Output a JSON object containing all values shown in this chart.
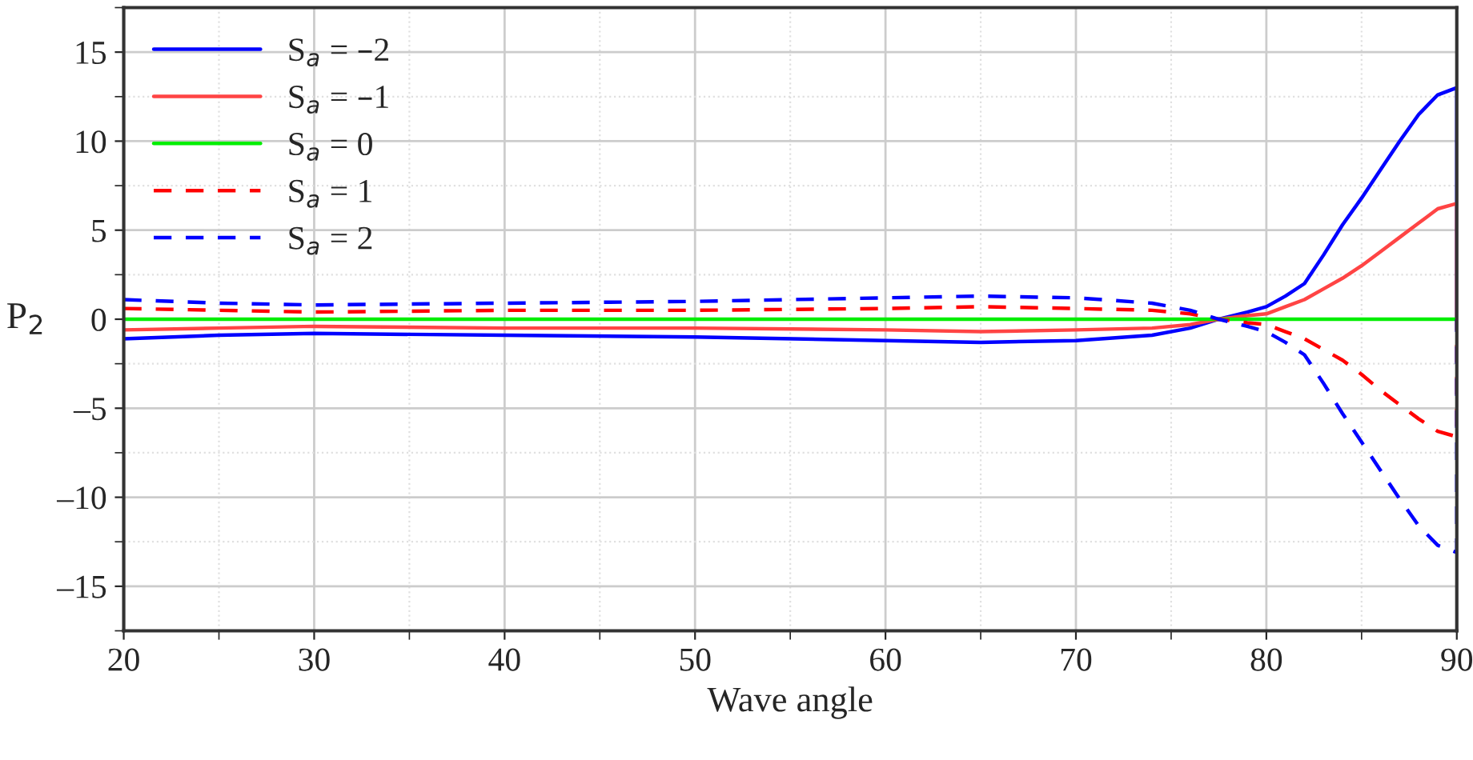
{
  "chart_data": {
    "type": "line",
    "xlabel": "Wave angle",
    "ylabel": "P$_{2}$",
    "xlim": [
      20,
      90
    ],
    "ylim": [
      -17.5,
      17.5
    ],
    "xticks": [
      20,
      30,
      40,
      50,
      60,
      70,
      80,
      90
    ],
    "yticks": [
      {
        "value": -15,
        "label": "–15"
      },
      {
        "value": -10,
        "label": "–10"
      },
      {
        "value": -5,
        "label": "–5"
      },
      0,
      5,
      10,
      15
    ],
    "grid": true,
    "legend": "top left",
    "x": [
      20,
      25,
      30,
      40,
      50,
      60,
      65,
      70,
      74,
      76,
      77.5,
      79,
      80,
      81,
      82,
      83,
      84,
      85,
      86,
      87,
      88,
      89,
      90,
      90
    ],
    "series": [
      {
        "name": "S$_{a}$ = –2",
        "color": "#0000ff",
        "line_style": "solid",
        "values": [
          -1.1,
          -0.9,
          -0.8,
          -0.9,
          -1.0,
          -1.2,
          -1.3,
          -1.2,
          -0.9,
          -0.5,
          0,
          0.4,
          0.7,
          1.3,
          2.0,
          3.6,
          5.3,
          6.8,
          8.4,
          10.0,
          11.5,
          12.6,
          13.0,
          0
        ]
      },
      {
        "name": "S$_{a}$ = –1",
        "color": "#ff4444",
        "line_style": "solid",
        "values": [
          -0.6,
          -0.5,
          -0.4,
          -0.5,
          -0.5,
          -0.6,
          -0.7,
          -0.6,
          -0.5,
          -0.3,
          0,
          0.2,
          0.3,
          0.7,
          1.1,
          1.7,
          2.3,
          3.0,
          3.8,
          4.6,
          5.4,
          6.2,
          6.5,
          0
        ]
      },
      {
        "name": "S$_{a}$ = 0",
        "color": "#00ee00",
        "line_style": "solid",
        "values": [
          0,
          0,
          0,
          0,
          0,
          0,
          0,
          0,
          0,
          0,
          0,
          0,
          0,
          0,
          0,
          0,
          0,
          0,
          0,
          0,
          0,
          0,
          0,
          0
        ]
      },
      {
        "name": "S$_{a}$ = 1",
        "color": "#ff0000",
        "line_style": "dashed",
        "values": [
          0.6,
          0.5,
          0.4,
          0.5,
          0.5,
          0.6,
          0.7,
          0.6,
          0.5,
          0.3,
          0,
          -0.2,
          -0.3,
          -0.7,
          -1.1,
          -1.7,
          -2.3,
          -3.1,
          -4.0,
          -4.8,
          -5.6,
          -6.3,
          -6.6,
          0
        ]
      },
      {
        "name": "S$_{a}$ = 2",
        "color": "#0000ff",
        "line_style": "dashed",
        "values": [
          1.1,
          0.9,
          0.8,
          0.9,
          1.0,
          1.2,
          1.3,
          1.2,
          0.9,
          0.5,
          0,
          -0.4,
          -0.7,
          -1.3,
          -2.0,
          -3.6,
          -5.3,
          -6.9,
          -8.5,
          -10.1,
          -11.6,
          -12.7,
          -13.1,
          0
        ]
      }
    ]
  }
}
